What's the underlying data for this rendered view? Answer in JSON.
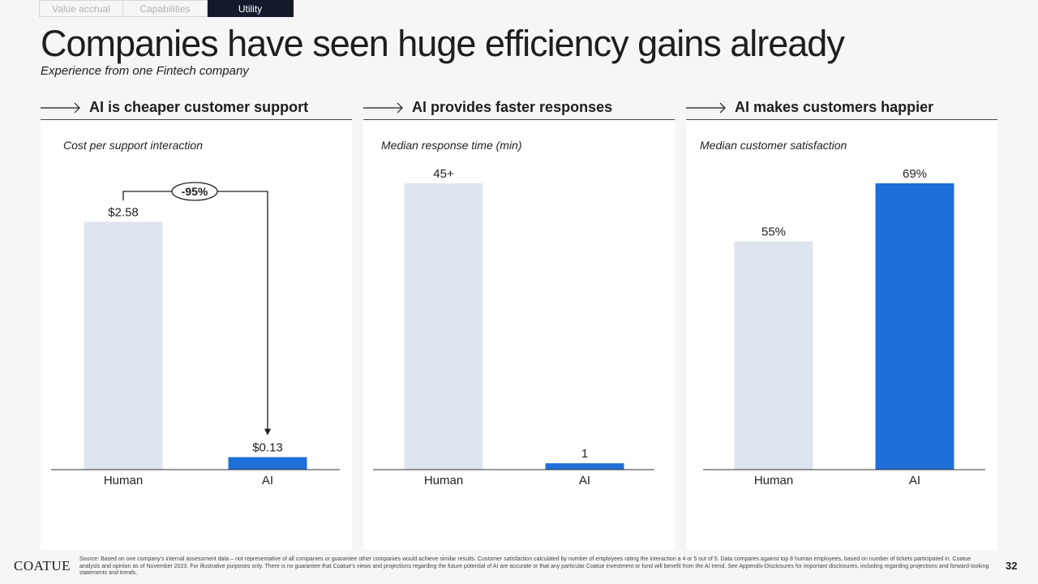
{
  "tabs": [
    {
      "label": "Value accrual",
      "active": false
    },
    {
      "label": "Capabilities",
      "active": false
    },
    {
      "label": "Utility",
      "active": true
    }
  ],
  "title": "Companies have seen huge efficiency gains already",
  "subtitle": "Experience from one Fintech company",
  "colors": {
    "human_bar": "#dfe5ef",
    "ai_bar": "#1e6fd9",
    "navy": "#141a2b"
  },
  "panels": [
    {
      "heading": "AI is cheaper customer support",
      "sublabel": "Cost per support interaction"
    },
    {
      "heading": "AI provides faster responses",
      "sublabel": "Median response time (min)"
    },
    {
      "heading": "AI makes customers happier",
      "sublabel": "Median customer satisfaction"
    }
  ],
  "chart_data": [
    {
      "type": "bar",
      "title": "Cost per support interaction",
      "categories": [
        "Human",
        "AI"
      ],
      "values": [
        2.58,
        0.13
      ],
      "data_labels": [
        "$2.58",
        "$0.13"
      ],
      "ylim": [
        0,
        2.98
      ],
      "annotation": "-95%"
    },
    {
      "type": "bar",
      "title": "Median response time (min)",
      "categories": [
        "Human",
        "AI"
      ],
      "values": [
        45,
        1
      ],
      "data_labels": [
        "45+",
        "1"
      ],
      "ylim": [
        0,
        45
      ]
    },
    {
      "type": "bar",
      "title": "Median customer satisfaction",
      "categories": [
        "Human",
        "AI"
      ],
      "values": [
        55,
        69
      ],
      "data_labels": [
        "55%",
        "69%"
      ],
      "ylim": [
        0,
        69
      ]
    }
  ],
  "footer": {
    "logo": "COATUE",
    "source": "Source: Based on one company’s internal assessment data – not representative of all companies or guarantee other companies would achieve similar results. Customer satisfaction calculated by number of employees rating the interaction a 4 or 5 out of 5. Data compares against top 8 human employees, based on number of tickets participated in. Coatue analysis and opinion as of November 2023. For illustrative purposes only. There is no guarantee that Coatue’s views and projections regarding the future potential of AI are accurate or that any particular Coatue investment or fund will benefit from the AI trend. See Appendix-Disclosures for important disclosures, including regarding projections and forward-looking statements and trends.",
    "page": "32"
  }
}
